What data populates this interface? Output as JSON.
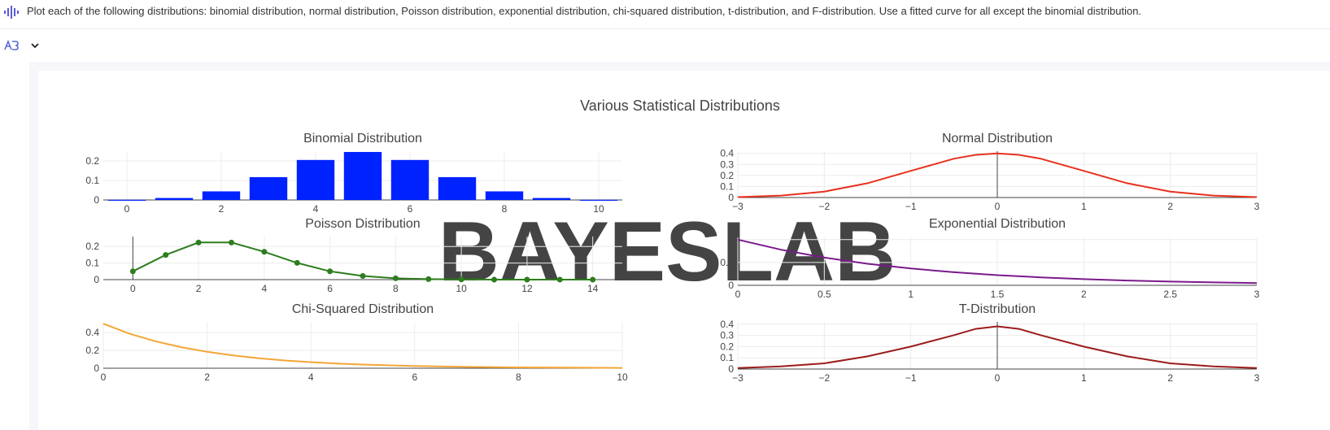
{
  "prompt": {
    "text": "Plot each of the following distributions: binomial distribution, normal distribution, Poisson distribution, exponential distribution, chi-squared distribution, t-distribution, and F-distribution. Use a fitted curve for all except the binomial distribution."
  },
  "figure": {
    "title": "Various Statistical Distributions",
    "watermark": "BAYESLAB"
  },
  "chart_data": [
    {
      "type": "bar",
      "title": "Binomial Distribution",
      "color": "#0022ff",
      "x": [
        0,
        1,
        2,
        3,
        4,
        5,
        6,
        7,
        8,
        9,
        10
      ],
      "values": [
        0.001,
        0.01,
        0.044,
        0.117,
        0.205,
        0.246,
        0.205,
        0.117,
        0.044,
        0.01,
        0.001
      ],
      "xlim": [
        -0.5,
        10.5
      ],
      "ylim": [
        0,
        0.25
      ],
      "xticks": [
        0,
        2,
        4,
        6,
        8,
        10
      ],
      "yticks": [
        0,
        0.1,
        0.2
      ],
      "yticklabels": [
        "0",
        "0.1",
        "0.2"
      ]
    },
    {
      "type": "line",
      "title": "Normal Distribution",
      "color": "#e8321e",
      "x": [
        -3,
        -2.5,
        -2,
        -1.5,
        -1,
        -0.5,
        -0.25,
        0,
        0.25,
        0.5,
        1,
        1.5,
        2,
        2.5,
        3
      ],
      "y": [
        0.004,
        0.018,
        0.054,
        0.13,
        0.242,
        0.352,
        0.387,
        0.399,
        0.387,
        0.352,
        0.242,
        0.13,
        0.054,
        0.018,
        0.004
      ],
      "xlim": [
        -3,
        3
      ],
      "ylim": [
        0,
        0.42
      ],
      "xticks": [
        -3,
        -2,
        -1,
        0,
        1,
        2,
        3
      ],
      "xticklabels": [
        "−3",
        "−2",
        "−1",
        "0",
        "1",
        "2",
        "3"
      ],
      "yticks": [
        0,
        0.1,
        0.2,
        0.3,
        0.4
      ],
      "yticklabels": [
        "0",
        "0.1",
        "0.2",
        "0.3",
        "0.4"
      ]
    },
    {
      "type": "line",
      "title": "Poisson Distribution",
      "color": "#2e7d1e",
      "x": [
        0,
        1,
        2,
        3,
        4,
        5,
        6,
        7,
        8,
        9,
        10,
        11,
        12,
        13,
        14
      ],
      "y": [
        0.05,
        0.149,
        0.224,
        0.224,
        0.168,
        0.101,
        0.05,
        0.022,
        0.008,
        0.003,
        0.001,
        0.0,
        0.0,
        0.0,
        0.0
      ],
      "markers": true,
      "xlim": [
        -0.9,
        14.9
      ],
      "ylim": [
        0,
        0.26
      ],
      "xticks": [
        0,
        2,
        4,
        6,
        8,
        10,
        12,
        14
      ],
      "yticks": [
        0,
        0.1,
        0.2
      ],
      "yticklabels": [
        "0",
        "0.1",
        "0.2"
      ]
    },
    {
      "type": "line",
      "title": "Exponential Distribution",
      "color": "#7b1a8c",
      "x": [
        0,
        0.25,
        0.5,
        0.75,
        1,
        1.25,
        1.5,
        1.75,
        2,
        2.25,
        2.5,
        2.75,
        3
      ],
      "y": [
        1,
        0.779,
        0.607,
        0.472,
        0.368,
        0.287,
        0.223,
        0.174,
        0.135,
        0.105,
        0.082,
        0.064,
        0.05
      ],
      "xlim": [
        0,
        3
      ],
      "ylim": [
        0,
        1.05
      ],
      "xticks": [
        0,
        0.5,
        1,
        1.5,
        2,
        2.5,
        3
      ],
      "xticklabels": [
        "0",
        "0.5",
        "1",
        "1.5",
        "2",
        "2.5",
        "3"
      ],
      "yticks": [
        0,
        0.5,
        1
      ],
      "yticklabels": [
        "0",
        "0.5",
        "1"
      ]
    },
    {
      "type": "line",
      "title": "Chi-Squared Distribution",
      "color": "#f4a536",
      "x": [
        0,
        0.5,
        1,
        1.5,
        2,
        2.5,
        3,
        3.5,
        4,
        4.5,
        5,
        6,
        7,
        8,
        9,
        10
      ],
      "y": [
        0.5,
        0.389,
        0.303,
        0.236,
        0.184,
        0.143,
        0.112,
        0.087,
        0.068,
        0.053,
        0.041,
        0.025,
        0.015,
        0.009,
        0.006,
        0.003
      ],
      "xlim": [
        0,
        10
      ],
      "ylim": [
        0,
        0.52
      ],
      "xticks": [
        0,
        2,
        4,
        6,
        8,
        10
      ],
      "yticks": [
        0,
        0.2,
        0.4
      ],
      "yticklabels": [
        "0",
        "0.2",
        "0.4"
      ]
    },
    {
      "type": "line",
      "title": "T-Distribution",
      "color": "#9b1c1c",
      "x": [
        -3,
        -2.5,
        -2,
        -1.5,
        -1,
        -0.5,
        -0.25,
        0,
        0.25,
        0.5,
        1,
        1.5,
        2,
        2.5,
        3
      ],
      "y": [
        0.009,
        0.023,
        0.051,
        0.113,
        0.2,
        0.302,
        0.358,
        0.38,
        0.358,
        0.302,
        0.2,
        0.113,
        0.051,
        0.023,
        0.009
      ],
      "xlim": [
        -3,
        3
      ],
      "ylim": [
        0,
        0.42
      ],
      "xticks": [
        -3,
        -2,
        -1,
        0,
        1,
        2,
        3
      ],
      "xticklabels": [
        "−3",
        "−2",
        "−1",
        "0",
        "1",
        "2",
        "3"
      ],
      "yticks": [
        0,
        0.1,
        0.2,
        0.3,
        0.4
      ],
      "yticklabels": [
        "0",
        "0.1",
        "0.2",
        "0.3",
        "0.4"
      ]
    }
  ]
}
